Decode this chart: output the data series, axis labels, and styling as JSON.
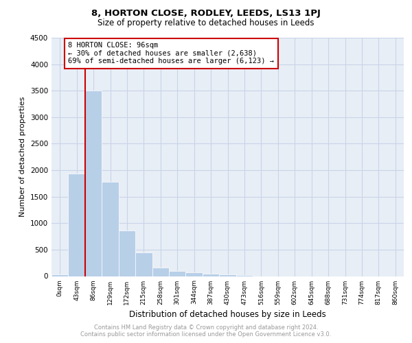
{
  "title": "8, HORTON CLOSE, RODLEY, LEEDS, LS13 1PJ",
  "subtitle": "Size of property relative to detached houses in Leeds",
  "xlabel": "Distribution of detached houses by size in Leeds",
  "ylabel": "Number of detached properties",
  "bar_labels": [
    "0sqm",
    "43sqm",
    "86sqm",
    "129sqm",
    "172sqm",
    "215sqm",
    "258sqm",
    "301sqm",
    "344sqm",
    "387sqm",
    "430sqm",
    "473sqm",
    "516sqm",
    "559sqm",
    "602sqm",
    "645sqm",
    "688sqm",
    "731sqm",
    "774sqm",
    "817sqm",
    "860sqm"
  ],
  "bar_values": [
    30,
    1930,
    3500,
    1780,
    860,
    450,
    160,
    100,
    70,
    50,
    30,
    20,
    0,
    0,
    0,
    0,
    0,
    0,
    0,
    0,
    0
  ],
  "bar_color": "#b8cfe8",
  "red_line_x": 1.5,
  "annotation_title": "8 HORTON CLOSE: 96sqm",
  "annotation_line1": "← 30% of detached houses are smaller (2,638)",
  "annotation_line2": "69% of semi-detached houses are larger (6,123) →",
  "annotation_box_facecolor": "#ffffff",
  "annotation_box_edgecolor": "#cc0000",
  "grid_color": "#c8d4e8",
  "bg_color": "#e8eef6",
  "ylim": [
    0,
    4500
  ],
  "yticks": [
    0,
    500,
    1000,
    1500,
    2000,
    2500,
    3000,
    3500,
    4000,
    4500
  ],
  "footnote1": "Contains HM Land Registry data © Crown copyright and database right 2024.",
  "footnote2": "Contains public sector information licensed under the Open Government Licence v3.0."
}
